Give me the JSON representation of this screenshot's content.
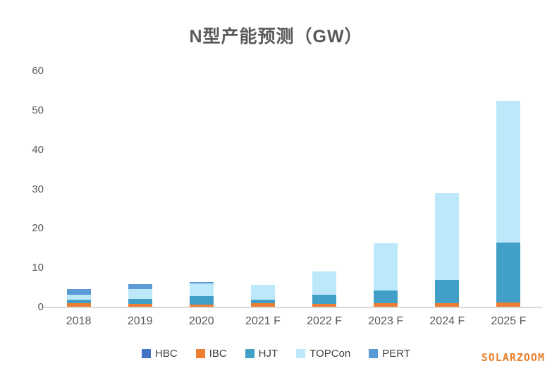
{
  "chart_data": {
    "type": "bar",
    "stacked": true,
    "title": "N型产能预测（GW）",
    "xlabel": "",
    "ylabel": "",
    "categories": [
      "2018",
      "2019",
      "2020",
      "2021 F",
      "2022 F",
      "2023 F",
      "2024 F",
      "2025 F"
    ],
    "series": [
      {
        "name": "HBC",
        "color": "#4472c4",
        "values": [
          0,
          0,
          0,
          0,
          0,
          0,
          0,
          0
        ]
      },
      {
        "name": "IBC",
        "color": "#ed7d31",
        "values": [
          1.0,
          0.9,
          0.8,
          1.0,
          0.9,
          1.0,
          1.0,
          1.3
        ]
      },
      {
        "name": "HJT",
        "color": "#419fc8",
        "values": [
          1.0,
          1.3,
          2.1,
          1.0,
          2.3,
          3.3,
          6.0,
          15.2
        ]
      },
      {
        "name": "TOPCon",
        "color": "#bde8fa",
        "values": [
          1.2,
          2.4,
          3.2,
          3.8,
          6.0,
          12.0,
          22.0,
          36.0
        ]
      },
      {
        "name": "PERT",
        "color": "#5b9bd5",
        "values": [
          1.4,
          1.4,
          0.4,
          0,
          0,
          0,
          0,
          0
        ]
      }
    ],
    "ylim": [
      0,
      60
    ],
    "yticks": [
      0,
      10,
      20,
      30,
      40,
      50,
      60
    ],
    "grid": false,
    "legend_position": "bottom"
  },
  "watermark": {
    "text": "SOLARZOOM",
    "color": "#e8802b"
  },
  "colors": {
    "title_text": "#595959",
    "axis_text": "#595959",
    "axis_line": "#d9d9d9",
    "background": "#ffffff"
  }
}
